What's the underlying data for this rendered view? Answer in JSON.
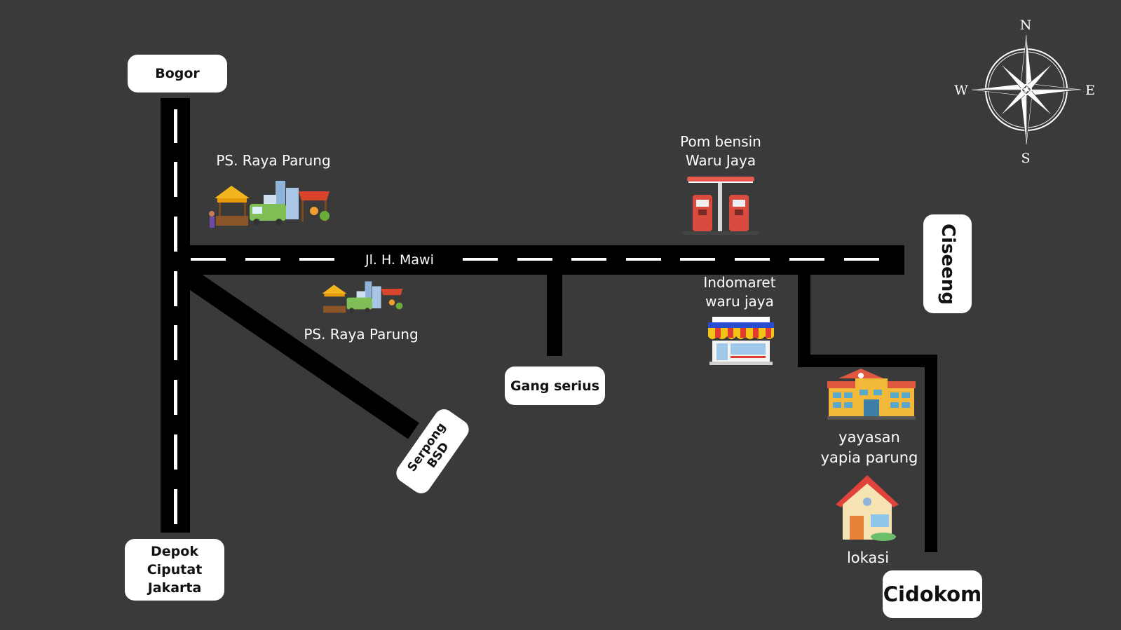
{
  "map": {
    "cities": {
      "bogor": "Bogor",
      "depok": [
        "Depok",
        "Ciputat",
        "Jakarta"
      ],
      "serpong": "Serpong BSD",
      "gang": "Gang serius",
      "ciseeng": "Ciseeng",
      "cidokom": "Cidokom"
    },
    "road_name": "Jl. H. Mawi",
    "places": {
      "market_top": "PS. Raya Parung",
      "market_bottom": "PS. Raya Parung",
      "gas_station": [
        "Pom bensin",
        "Waru Jaya"
      ],
      "indomaret": [
        "Indomaret",
        "waru jaya"
      ],
      "school": [
        "yayasan",
        "yapia parung"
      ],
      "location": "lokasi"
    },
    "compass": {
      "n": "N",
      "s": "S",
      "e": "E",
      "w": "W"
    },
    "colors": {
      "background": "#3a3a3a",
      "road": "#000000",
      "dash": "#ffffff",
      "label_bg": "#ffffff"
    }
  }
}
